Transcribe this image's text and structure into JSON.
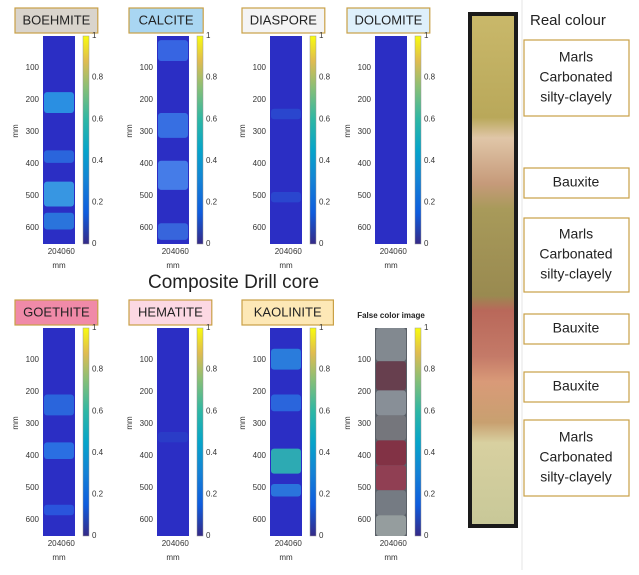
{
  "title": "Composite Drill core",
  "axis_label": "mm",
  "yticks": [
    100,
    200,
    300,
    400,
    500,
    600
  ],
  "xticks": [
    20,
    40,
    60
  ],
  "colorbar_ticks": [
    0,
    0.2,
    0.4,
    0.6,
    0.8,
    1
  ],
  "panels": [
    {
      "label": "BOEHMITE",
      "color": "#d9d4cc"
    },
    {
      "label": "CALCITE",
      "color": "#a9d6f2"
    },
    {
      "label": "DIASPORE",
      "color": "#f4f4f4"
    },
    {
      "label": "DOLOMITE",
      "color": "#def0fb"
    },
    {
      "label": "GOETHITE",
      "color": "#f08aa8"
    },
    {
      "label": "HEMATITE",
      "color": "#fcd8e3"
    },
    {
      "label": "KAOLINITE",
      "color": "#fde8b6"
    },
    {
      "title": "False color image"
    }
  ],
  "real_colour": {
    "title": "Real colour",
    "labels": [
      [
        "Marls",
        "Carbonated",
        "silty-clayely"
      ],
      [
        "Bauxite"
      ],
      [
        "Marls",
        "Carbonated",
        "silty-clayely"
      ],
      [
        "Bauxite"
      ],
      [
        "Bauxite"
      ],
      [
        "Marls",
        "Carbonated",
        "silty-clayely"
      ]
    ]
  }
}
